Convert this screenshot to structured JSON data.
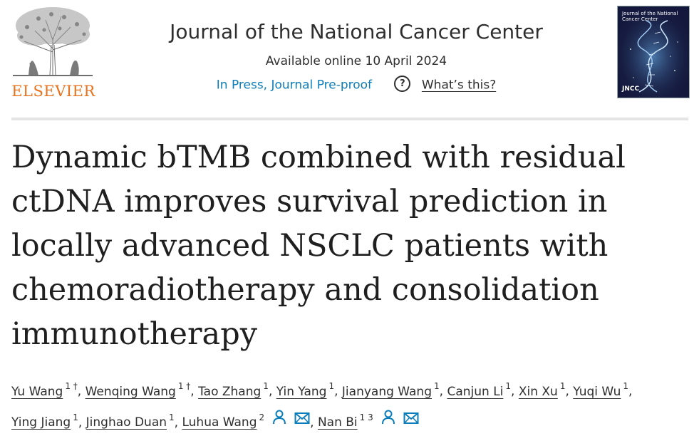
{
  "publisher": {
    "name": "ELSEVIER",
    "logo_icon": "tree-logo-icon"
  },
  "journal": {
    "title": "Journal of the National Cancer Center",
    "availability": "Available online 10 April 2024",
    "status": "In Press, Journal Pre-proof",
    "help_link": "What’s this?",
    "cover_title": "Journal of the National Cancer Center",
    "cover_abbrev": "JNCC"
  },
  "article": {
    "title": "Dynamic bTMB combined with residual ctDNA improves survival prediction in locally advanced NSCLC patients with chemoradiotherapy and consolidation immunotherapy"
  },
  "authors": [
    {
      "name": "Yu Wang",
      "aff": "1 †"
    },
    {
      "name": "Wenqing Wang",
      "aff": "1 †"
    },
    {
      "name": "Tao Zhang",
      "aff": "1"
    },
    {
      "name": "Yin Yang",
      "aff": "1"
    },
    {
      "name": "Jianyang Wang",
      "aff": "1"
    },
    {
      "name": "Canjun Li",
      "aff": "1"
    },
    {
      "name": "Xin Xu",
      "aff": "1"
    },
    {
      "name": "Yuqi Wu",
      "aff": "1"
    },
    {
      "name": "Ying Jiang",
      "aff": "1"
    },
    {
      "name": "Jinghao Duan",
      "aff": "1"
    },
    {
      "name": "Luhua Wang",
      "aff": "2"
    },
    {
      "name": "Nan Bi",
      "aff": "1 3"
    }
  ],
  "colors": {
    "accent_link": "#0c7dbb",
    "elsevier_orange": "#e9711c",
    "text": "#1f1f1f"
  }
}
